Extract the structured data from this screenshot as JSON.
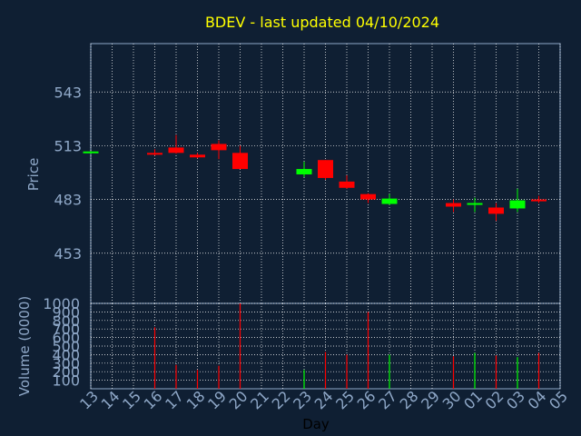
{
  "title": "BDEV - last updated 04/10/2024",
  "colors": {
    "background": "#0f1f33",
    "up": "#00ff00",
    "down": "#ff0000",
    "grid": "#ffffff",
    "axis_text": "#8fa8c8",
    "title": "#ffff00"
  },
  "chart_data": [
    {
      "type": "candlestick",
      "ylabel": "Price",
      "ylim": [
        425,
        570
      ],
      "yticks": [
        453,
        483,
        513,
        543
      ],
      "candles": [
        {
          "day": "13",
          "open": 509.0,
          "close": 509.8,
          "high": 510.0,
          "low": 508.5
        },
        {
          "day": "16",
          "open": 509.0,
          "close": 508.0,
          "high": 511.0,
          "low": 507.5
        },
        {
          "day": "17",
          "open": 512.0,
          "close": 509.0,
          "high": 519.0,
          "low": 508.5
        },
        {
          "day": "18",
          "open": 508.0,
          "close": 506.5,
          "high": 509.0,
          "low": 506.0
        },
        {
          "day": "19",
          "open": 514.0,
          "close": 510.5,
          "high": 516.0,
          "low": 505.5
        },
        {
          "day": "20",
          "open": 509.0,
          "close": 500.0,
          "high": 513.0,
          "low": 500.0
        },
        {
          "day": "23",
          "open": 497.0,
          "close": 500.0,
          "high": 504.0,
          "low": 495.5
        },
        {
          "day": "24",
          "open": 505.0,
          "close": 495.0,
          "high": 505.0,
          "low": 494.0
        },
        {
          "day": "25",
          "open": 493.0,
          "close": 489.5,
          "high": 496.5,
          "low": 489.0
        },
        {
          "day": "26",
          "open": 486.0,
          "close": 483.0,
          "high": 486.5,
          "low": 481.0
        },
        {
          "day": "27",
          "open": 480.5,
          "close": 483.5,
          "high": 486.0,
          "low": 480.0
        },
        {
          "day": "30",
          "open": 481.0,
          "close": 479.0,
          "high": 483.0,
          "low": 476.0
        },
        {
          "day": "01",
          "open": 480.0,
          "close": 481.0,
          "high": 484.0,
          "low": 476.0
        },
        {
          "day": "02",
          "open": 478.5,
          "close": 475.0,
          "high": 481.0,
          "low": 471.0
        },
        {
          "day": "03",
          "open": 478.0,
          "close": 482.5,
          "high": 489.0,
          "low": 476.0
        },
        {
          "day": "04",
          "open": 483.0,
          "close": 482.0,
          "high": 485.0,
          "low": 481.0
        }
      ]
    },
    {
      "type": "bar",
      "ylabel": "Volume (0000)",
      "ylim": [
        0,
        1000
      ],
      "yticks": [
        100,
        200,
        300,
        400,
        500,
        600,
        700,
        800,
        900,
        1000
      ],
      "xlabel": "Day",
      "x_tick_labels": [
        "13",
        "14",
        "15",
        "16",
        "17",
        "18",
        "19",
        "20",
        "21",
        "22",
        "23",
        "24",
        "25",
        "26",
        "27",
        "28",
        "29",
        "30",
        "01",
        "02",
        "03",
        "04",
        "05"
      ],
      "bars": [
        {
          "day": "16",
          "value": 720,
          "direction": "down"
        },
        {
          "day": "17",
          "value": 280,
          "direction": "down"
        },
        {
          "day": "18",
          "value": 220,
          "direction": "down"
        },
        {
          "day": "19",
          "value": 270,
          "direction": "down"
        },
        {
          "day": "20",
          "value": 1000,
          "direction": "down"
        },
        {
          "day": "23",
          "value": 220,
          "direction": "up"
        },
        {
          "day": "24",
          "value": 430,
          "direction": "down"
        },
        {
          "day": "25",
          "value": 400,
          "direction": "down"
        },
        {
          "day": "26",
          "value": 900,
          "direction": "down"
        },
        {
          "day": "27",
          "value": 400,
          "direction": "up"
        },
        {
          "day": "30",
          "value": 380,
          "direction": "down"
        },
        {
          "day": "01",
          "value": 420,
          "direction": "up"
        },
        {
          "day": "02",
          "value": 390,
          "direction": "down"
        },
        {
          "day": "03",
          "value": 370,
          "direction": "up"
        },
        {
          "day": "04",
          "value": 420,
          "direction": "down"
        }
      ]
    }
  ]
}
